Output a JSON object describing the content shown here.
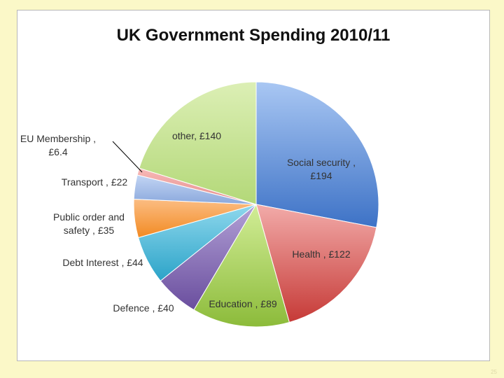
{
  "page_number": "25",
  "chart_data": {
    "type": "pie",
    "title": "UK Government Spending 2010/11",
    "slices": [
      {
        "category": "Social security",
        "value": 194,
        "label_lines": [
          "Social security ,",
          "£194"
        ],
        "color_light": "#a9c7f3",
        "color_dark": "#3d72c6"
      },
      {
        "category": "Health",
        "value": 122,
        "label_lines": [
          "Health , £122"
        ],
        "color_light": "#f2aba9",
        "color_dark": "#c63a37"
      },
      {
        "category": "Education",
        "value": 89,
        "label_lines": [
          "Education , £89"
        ],
        "color_light": "#d2ed97",
        "color_dark": "#8cbb3a"
      },
      {
        "category": "Defence",
        "value": 40,
        "label_lines": [
          "Defence , £40"
        ],
        "color_light": "#b2a1d6",
        "color_dark": "#6a4e9e"
      },
      {
        "category": "Debt Interest",
        "value": 44,
        "label_lines": [
          "Debt Interest , £44"
        ],
        "color_light": "#8fd8ed",
        "color_dark": "#2ba3c8"
      },
      {
        "category": "Public order and safety",
        "value": 35,
        "label_lines": [
          "Public order and",
          "safety , £35"
        ],
        "color_light": "#fbbd83",
        "color_dark": "#f28a22"
      },
      {
        "category": "Transport",
        "value": 22,
        "label_lines": [
          "Transport , £22"
        ],
        "color_light": "#c3d5f4",
        "color_dark": "#8aa8dc"
      },
      {
        "category": "EU Membership",
        "value": 6.4,
        "label_lines": [
          "EU Membership ,",
          "£6.4"
        ],
        "color_light": "#f7b9b7",
        "color_dark": "#e58d8b"
      },
      {
        "category": "other",
        "value": 140,
        "label_lines": [
          "other, £140"
        ],
        "color_light": "#dcefb5",
        "color_dark": "#b3d878"
      }
    ]
  }
}
